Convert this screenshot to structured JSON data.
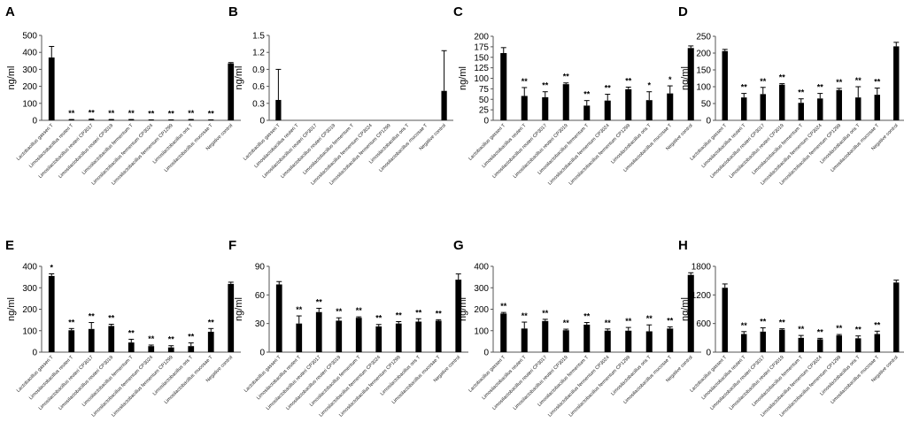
{
  "chart_data": [
    {
      "panel": "A",
      "type": "bar",
      "ylabel": "ng/ml",
      "ylim": [
        0,
        500
      ],
      "yticks": [
        "0",
        "100",
        "200",
        "300",
        "400",
        "500"
      ],
      "categories": [
        "Lactobacillus gasseri T",
        "Limosilactobacillus reuteri T",
        "Limosilactobacillus reuteri CP3017",
        "Limosilactobacillus reuteri CP3019",
        "Limosilactobacillus fermentum T",
        "Limosilactobacillus fermentum CP3024",
        "Limosilactobacillus fermentum CP1299",
        "Limosilactobacillus oris T",
        "Limosilactobacillus mucosae T",
        "Negative control"
      ],
      "values": [
        370,
        3,
        4,
        3,
        3,
        2,
        2,
        3,
        2,
        335
      ],
      "errors": [
        65,
        2,
        3,
        2,
        2,
        1,
        1,
        2,
        1,
        5
      ],
      "significance": [
        "",
        "**",
        "**",
        "**",
        "**",
        "**",
        "**",
        "**",
        "**",
        ""
      ]
    },
    {
      "panel": "B",
      "type": "bar",
      "ylabel": "ng/ml",
      "ylim": [
        0,
        1.5
      ],
      "yticks": [
        "0",
        "0.3",
        "0.6",
        "0.9",
        "1.2",
        "1.5"
      ],
      "categories": [
        "Lactobacillus gasseri T",
        "Limosilactobacillus reuteri T",
        "Limosilactobacillus reuteri CP3017",
        "Limosilactobacillus reuteri CP3019",
        "Limosilactobacillus fermentum T",
        "Limosilactobacillus fermentum CP3024",
        "Limosilactobacillus fermentum CP1299",
        "Limosilactobacillus oris T",
        "Limosilactobacillus mucosae T",
        "Negative control"
      ],
      "values": [
        0.36,
        0,
        0,
        0,
        0,
        0,
        0,
        0,
        0,
        0.52
      ],
      "errors": [
        0.54,
        0,
        0,
        0,
        0,
        0,
        0,
        0,
        0,
        0.71
      ],
      "significance": [
        "",
        "",
        "",
        "",
        "",
        "",
        "",
        "",
        "",
        ""
      ]
    },
    {
      "panel": "C",
      "type": "bar",
      "ylabel": "ng/ml",
      "ylim": [
        0,
        200
      ],
      "yticks": [
        "0",
        "25",
        "50",
        "75",
        "100",
        "125",
        "150",
        "175",
        "200"
      ],
      "categories": [
        "Lactobacillus gasseri T",
        "Limosilactobacillus reuteri T",
        "Limosilactobacillus reuteri CP3017",
        "Limosilactobacillus reuteri CP3019",
        "Limosilactobacillus fermentum T",
        "Limosilactobacillus fermentum CP3024",
        "Limosilactobacillus fermentum CP1299",
        "Limosilactobacillus oris T",
        "Limosilactobacillus mucosae T",
        "Negative control"
      ],
      "values": [
        160,
        58,
        55,
        86,
        35,
        47,
        74,
        48,
        64,
        172
      ],
      "errors": [
        13,
        20,
        13,
        3,
        12,
        15,
        5,
        20,
        18,
        5
      ],
      "significance": [
        "",
        "**",
        "**",
        "**",
        "**",
        "**",
        "**",
        "*",
        "*",
        ""
      ]
    },
    {
      "panel": "D",
      "type": "bar",
      "ylabel": "ng/ml",
      "ylim": [
        0,
        250
      ],
      "yticks": [
        "0",
        "50",
        "100",
        "150",
        "200",
        "250"
      ],
      "categories": [
        "Lactobacillus gasseri T",
        "Limosilactobacillus reuteri T",
        "Limosilactobacillus reuteri CP3017",
        "Limosilactobacillus reuteri CP3019",
        "Limosilactobacillus fermentum T",
        "Limosilactobacillus fermentum CP3024",
        "Limosilactobacillus fermentum CP1299",
        "Limosilactobacillus oris T",
        "Limosilactobacillus mucosae T",
        "Negative control"
      ],
      "values": [
        206,
        68,
        78,
        106,
        52,
        65,
        90,
        68,
        76,
        220
      ],
      "errors": [
        5,
        12,
        20,
        3,
        12,
        15,
        5,
        32,
        20,
        12
      ],
      "significance": [
        "",
        "**",
        "**",
        "**",
        "**",
        "**",
        "**",
        "**",
        "**",
        ""
      ]
    },
    {
      "panel": "E",
      "type": "bar",
      "ylabel": "ng/ml",
      "ylim": [
        0,
        400
      ],
      "yticks": [
        "0",
        "100",
        "200",
        "300",
        "400"
      ],
      "categories": [
        "Lactobacillus gasseri T",
        "Limosilactobacillus reuteri T",
        "Limosilactobacillus reuteri CP3017",
        "Limosilactobacillus reuteri CP3019",
        "Limosilactobacillus fermentum T",
        "Limosilactobacillus fermentum CP3024",
        "Limosilactobacillus fermentum CP1299",
        "Limosilactobacillus oris T",
        "Limosilactobacillus mucosae T",
        "Negative control"
      ],
      "values": [
        355,
        102,
        108,
        122,
        45,
        28,
        22,
        28,
        95,
        318
      ],
      "errors": [
        10,
        8,
        30,
        8,
        15,
        5,
        8,
        15,
        15,
        8
      ],
      "significance": [
        "*",
        "**",
        "**",
        "**",
        "**",
        "**",
        "**",
        "**",
        "**",
        ""
      ]
    },
    {
      "panel": "F",
      "type": "bar",
      "ylabel": "ng/ml",
      "ylim": [
        0,
        90
      ],
      "yticks": [
        "0",
        "30",
        "60",
        "90"
      ],
      "categories": [
        "Lactobacillus gasseri T",
        "Limosilactobacillus reuteri T",
        "Limosilactobacillus reuteri CP3017",
        "Limosilactobacillus reuteri CP3019",
        "Limosilactobacillus fermentum T",
        "Limosilactobacillus fermentum CP3024",
        "Limosilactobacillus fermentum CP1299",
        "Limosilactobacillus oris T",
        "Limosilactobacillus mucosae T",
        "Negative control"
      ],
      "values": [
        71,
        30,
        42,
        33,
        36,
        27,
        30,
        32,
        33,
        76
      ],
      "errors": [
        3,
        8,
        4,
        3,
        1,
        2,
        2,
        3,
        1,
        6
      ],
      "significance": [
        "",
        "**",
        "**",
        "**",
        "**",
        "**",
        "**",
        "**",
        "**",
        ""
      ]
    },
    {
      "panel": "G",
      "type": "bar",
      "ylabel": "ng/ml",
      "ylim": [
        0,
        400
      ],
      "yticks": [
        "0",
        "100",
        "200",
        "300",
        "400"
      ],
      "categories": [
        "Lactobacillus gasseri T",
        "Limosilactobacillus reuteri T",
        "Limosilactobacillus reuteri CP3017",
        "Limosilactobacillus reuteri CP3019",
        "Limosilactobacillus fermentum T",
        "Limosilactobacillus fermentum CP3024",
        "Limosilactobacillus fermentum CP1299",
        "Limosilactobacillus oris T",
        "Limosilactobacillus mucosae T",
        "Negative control"
      ],
      "values": [
        180,
        110,
        145,
        102,
        128,
        100,
        100,
        97,
        110,
        360
      ],
      "errors": [
        5,
        30,
        8,
        5,
        10,
        8,
        15,
        30,
        8,
        10
      ],
      "significance": [
        "**",
        "**",
        "**",
        "**",
        "**",
        "**",
        "**",
        "**",
        "**",
        ""
      ]
    },
    {
      "panel": "H",
      "type": "bar",
      "ylabel": "ng/ml",
      "ylim": [
        0,
        1800
      ],
      "yticks": [
        "0",
        "600",
        "1200",
        "1800"
      ],
      "categories": [
        "Lactobacillus gasseri T",
        "Limosilactobacillus reuteri T",
        "Limosilactobacillus reuteri CP3017",
        "Limosilactobacillus reuteri CP3019",
        "Limosilactobacillus fermentum T",
        "Limosilactobacillus fermentum CP3024",
        "Limosilactobacillus fermentum CP1299",
        "Limosilactobacillus oris T",
        "Limosilactobacillus mucosae T",
        "Negative control"
      ],
      "values": [
        1350,
        380,
        430,
        470,
        300,
        270,
        350,
        290,
        380,
        1460
      ],
      "errors": [
        80,
        50,
        80,
        20,
        50,
        20,
        20,
        50,
        60,
        50
      ],
      "significance": [
        "",
        "**",
        "**",
        "**",
        "**",
        "**",
        "**",
        "**",
        "**",
        ""
      ]
    }
  ]
}
